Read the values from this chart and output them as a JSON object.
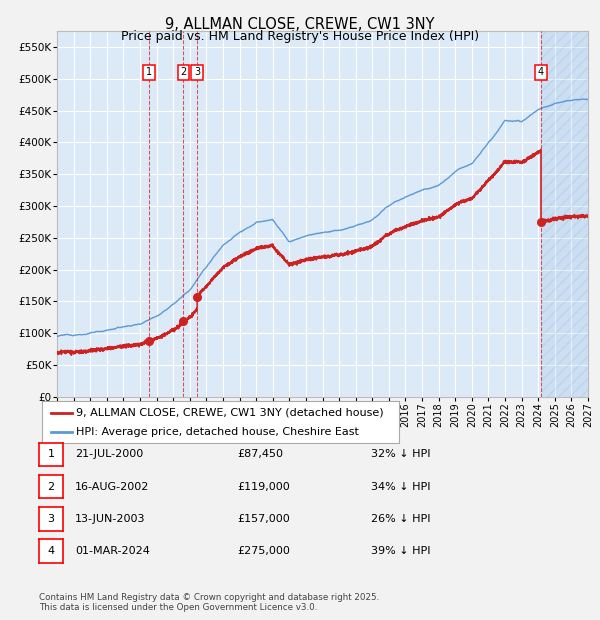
{
  "title": "9, ALLMAN CLOSE, CREWE, CW1 3NY",
  "subtitle": "Price paid vs. HM Land Registry's House Price Index (HPI)",
  "ylim": [
    0,
    575000
  ],
  "yticks": [
    0,
    50000,
    100000,
    150000,
    200000,
    250000,
    300000,
    350000,
    400000,
    450000,
    500000,
    550000
  ],
  "xlim_start": 1995.0,
  "xlim_end": 2027.0,
  "hpi_color": "#5b9bd5",
  "sale_color": "#cc2222",
  "plot_bg_color": "#dce9f7",
  "grid_color": "#ffffff",
  "hatch_color": "#b8cfe8",
  "sale_points": [
    {
      "label": 1,
      "year": 2000.55,
      "price": 87450
    },
    {
      "label": 2,
      "year": 2002.62,
      "price": 119000
    },
    {
      "label": 3,
      "year": 2003.45,
      "price": 157000
    },
    {
      "label": 4,
      "year": 2024.17,
      "price": 275000
    }
  ],
  "hpi_key_years": [
    1995,
    1996,
    1997,
    1998,
    1999,
    2000,
    2001,
    2002,
    2003,
    2004,
    2005,
    2006,
    2007,
    2008,
    2009,
    2010,
    2011,
    2012,
    2013,
    2014,
    2015,
    2016,
    2017,
    2018,
    2019,
    2020,
    2021,
    2022,
    2023,
    2024,
    2025,
    2026,
    2027
  ],
  "hpi_key_vals": [
    95000,
    97000,
    100000,
    105000,
    110000,
    115000,
    130000,
    148000,
    170000,
    205000,
    240000,
    260000,
    275000,
    280000,
    245000,
    255000,
    260000,
    262000,
    268000,
    278000,
    300000,
    315000,
    325000,
    335000,
    355000,
    370000,
    405000,
    440000,
    435000,
    455000,
    465000,
    470000,
    472000
  ],
  "table_entries": [
    {
      "num": 1,
      "date": "21-JUL-2000",
      "price": "£87,450",
      "pct": "32% ↓ HPI"
    },
    {
      "num": 2,
      "date": "16-AUG-2002",
      "price": "£119,000",
      "pct": "34% ↓ HPI"
    },
    {
      "num": 3,
      "date": "13-JUN-2003",
      "price": "£157,000",
      "pct": "26% ↓ HPI"
    },
    {
      "num": 4,
      "date": "01-MAR-2024",
      "price": "£275,000",
      "pct": "39% ↓ HPI"
    }
  ],
  "legend_entries": [
    "9, ALLMAN CLOSE, CREWE, CW1 3NY (detached house)",
    "HPI: Average price, detached house, Cheshire East"
  ],
  "footnote": "Contains HM Land Registry data © Crown copyright and database right 2025.\nThis data is licensed under the Open Government Licence v3.0.",
  "title_fontsize": 10.5,
  "subtitle_fontsize": 9,
  "axis_fontsize": 7.5,
  "legend_fontsize": 8,
  "table_fontsize": 8
}
